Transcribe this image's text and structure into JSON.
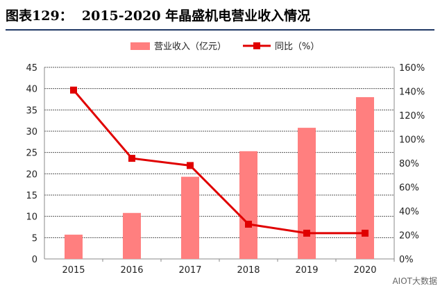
{
  "chart_data": {
    "type": "bar+line",
    "title": "图表129：  2015-2020 年晶盛机电营业收入情况",
    "categories": [
      "2015",
      "2016",
      "2017",
      "2018",
      "2019",
      "2020"
    ],
    "series": [
      {
        "name": "营业收入（亿元）",
        "type": "bar",
        "axis": "left",
        "color": "#ff7f7f",
        "values": [
          5.7,
          10.8,
          19.3,
          25.3,
          30.8,
          38.0
        ]
      },
      {
        "name": "同比（%）",
        "type": "line",
        "axis": "right",
        "color": "#e00000",
        "values": [
          141,
          84,
          78,
          29,
          21.5,
          21.5
        ]
      }
    ],
    "left_axis": {
      "ylim": [
        0,
        45
      ],
      "ticks": [
        "0",
        "5",
        "10",
        "15",
        "20",
        "25",
        "30",
        "35",
        "40",
        "45"
      ]
    },
    "right_axis": {
      "ylim": [
        0,
        160
      ],
      "ticks": [
        "0%",
        "20%",
        "40%",
        "60%",
        "80%",
        "100%",
        "120%",
        "140%",
        "160%"
      ]
    },
    "grid": true,
    "legend": "top",
    "watermark": "AIOT大数据"
  }
}
